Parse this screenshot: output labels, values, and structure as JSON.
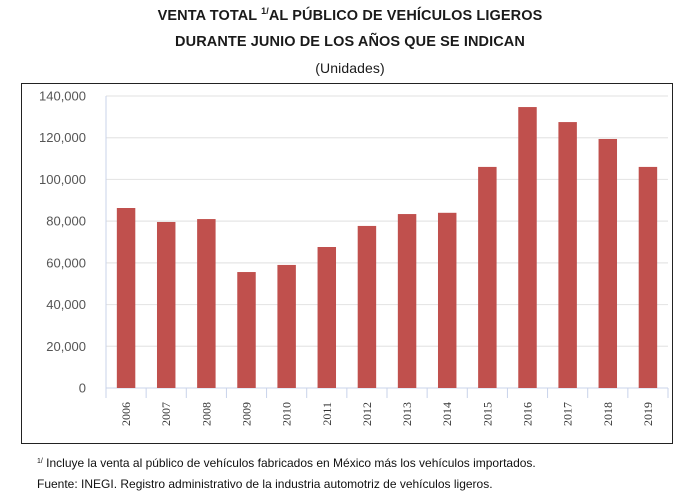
{
  "title": {
    "line1_pre": "VENTA TOTAL ",
    "line1_sup": "1/",
    "line1_post": "AL PÚBLICO DE VEHÍCULOS LIGEROS",
    "line2": "DURANTE JUNIO DE LOS AÑOS QUE SE INDICAN",
    "line3": "(Unidades)"
  },
  "footnotes": {
    "note_sup": "1/",
    "note_text": " Incluye la venta al público de vehículos fabricados en México más los vehículos importados.",
    "source": "Fuente: INEGI. Registro administrativo de la industria automotriz de vehículos ligeros."
  },
  "colors": {
    "bar": "#c0504d",
    "gridline": "#e6e6e6",
    "axis": "#c9d3ea",
    "tick_label": "#555555"
  },
  "chart_data": {
    "type": "bar",
    "title": "VENTA TOTAL 1/ AL PÚBLICO DE VEHÍCULOS LIGEROS DURANTE JUNIO DE LOS AÑOS QUE SE INDICAN",
    "subtitle": "(Unidades)",
    "xlabel": "",
    "ylabel": "",
    "categories": [
      "2006",
      "2007",
      "2008",
      "2009",
      "2010",
      "2011",
      "2012",
      "2013",
      "2014",
      "2015",
      "2016",
      "2017",
      "2018",
      "2019"
    ],
    "values": [
      86300,
      79600,
      81000,
      55600,
      59000,
      67600,
      77700,
      83400,
      84000,
      106000,
      134700,
      127500,
      119400,
      106000
    ],
    "ylim": [
      0,
      140000
    ],
    "yticks": [
      0,
      20000,
      40000,
      60000,
      80000,
      100000,
      120000,
      140000
    ],
    "ytick_labels": [
      "0",
      "20,000",
      "40,000",
      "60,000",
      "80,000",
      "100,000",
      "120,000",
      "140,000"
    ],
    "grid": true,
    "legend": "none",
    "xtick_rotation": "vertical"
  }
}
